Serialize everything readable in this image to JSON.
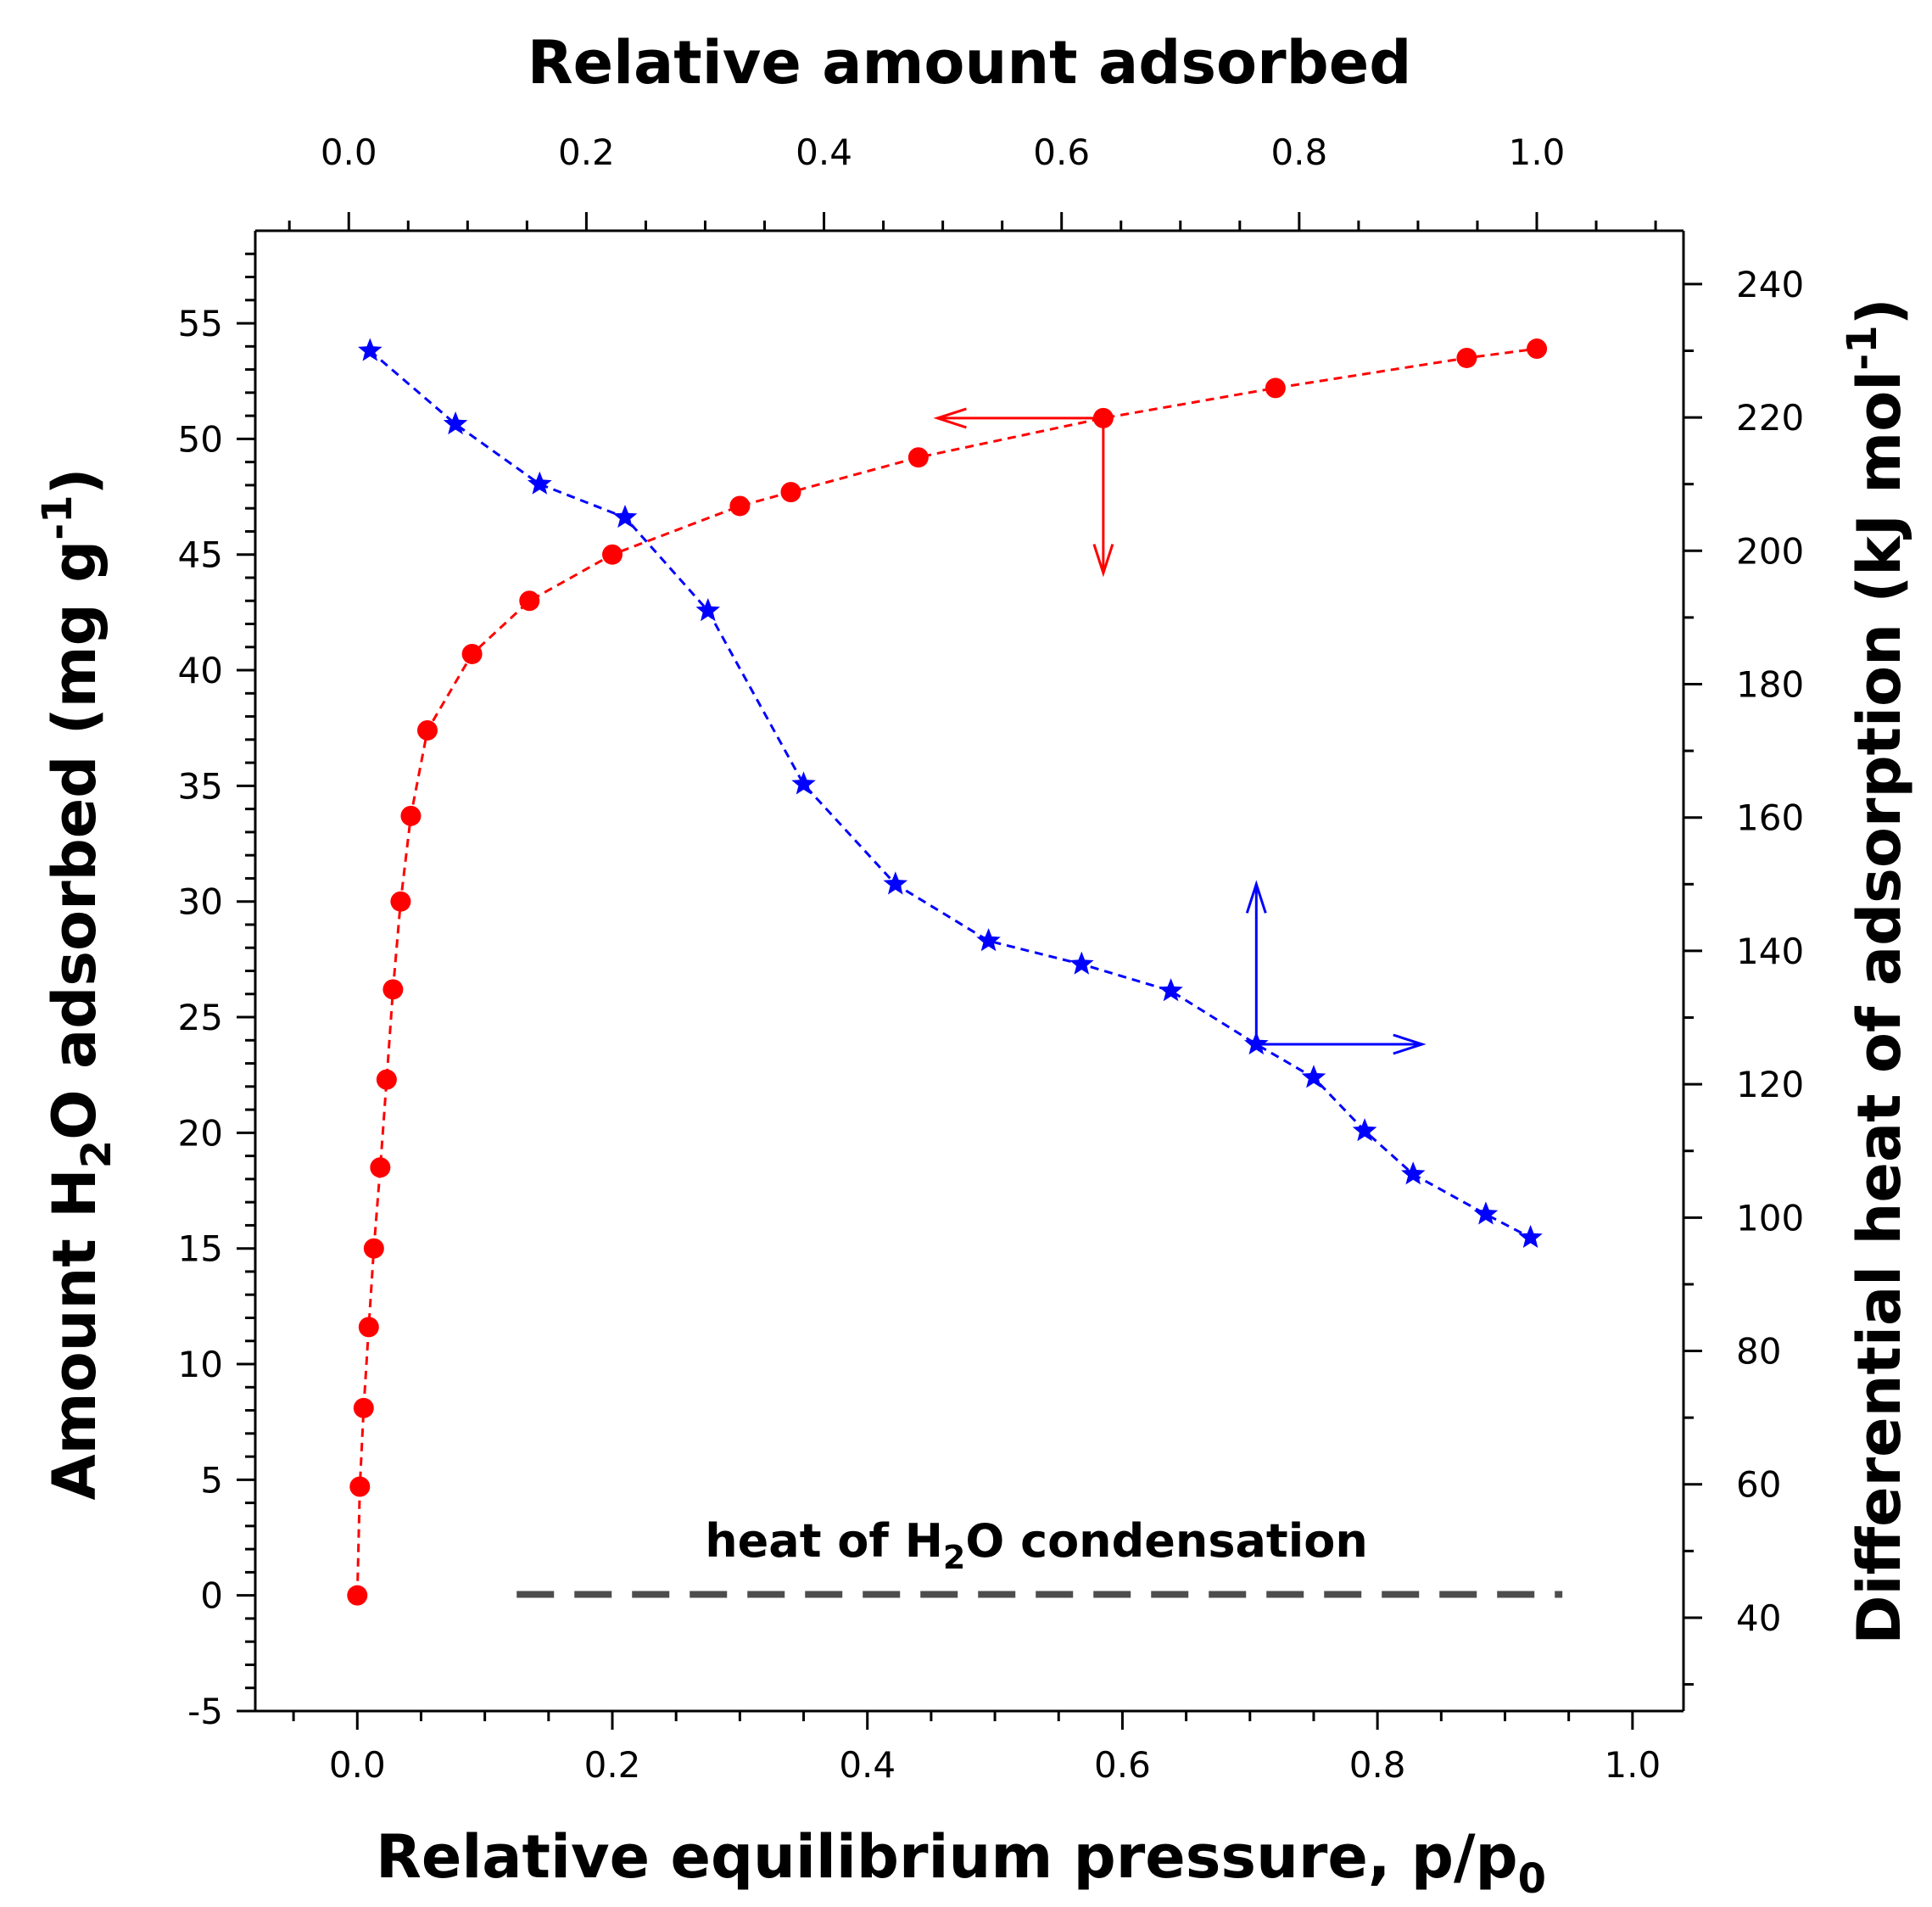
{
  "chart_data": {
    "type": "scatter",
    "top_axis": {
      "label": "Relative amount adsorbed",
      "range": [
        -0.0787,
        1.1235
      ],
      "ticks": [
        0.0,
        0.2,
        0.4,
        0.6,
        0.8,
        1.0
      ],
      "tick_labels": [
        "0.0",
        "0.2",
        "0.4",
        "0.6",
        "0.8",
        "1.0"
      ]
    },
    "x_axis": {
      "label_main": "Relative equilibrium pressure, p/p",
      "label_sub": "0",
      "range": [
        -0.08,
        1.04
      ],
      "ticks": [
        0.0,
        0.2,
        0.4,
        0.6,
        0.8,
        1.0
      ],
      "tick_labels": [
        "0.0",
        "0.2",
        "0.4",
        "0.6",
        "0.8",
        "1.0"
      ]
    },
    "y_left": {
      "label_pre": "Amount H",
      "label_sub": "2",
      "label_mid": "O adsorbed (mg g",
      "label_sup": "-1",
      "label_post": ")",
      "range": [
        -5,
        59
      ],
      "ticks": [
        -5,
        0,
        5,
        10,
        15,
        20,
        25,
        30,
        35,
        40,
        45,
        50,
        55
      ],
      "tick_labels": [
        "-5",
        "0",
        "5",
        "10",
        "15",
        "20",
        "25",
        "30",
        "35",
        "40",
        "45",
        "50",
        "55"
      ]
    },
    "y_right": {
      "label_pre": "Differential heat of adsorption (kJ mol",
      "label_sup": "-1",
      "label_post": ")",
      "range": [
        26,
        248
      ],
      "ticks": [
        40,
        60,
        80,
        100,
        120,
        140,
        160,
        180,
        200,
        220,
        240
      ],
      "tick_labels": [
        "40",
        "60",
        "80",
        "100",
        "120",
        "140",
        "160",
        "180",
        "200",
        "220",
        "240"
      ]
    },
    "series": [
      {
        "name": "Amount H2O adsorbed",
        "axis": "left",
        "marker": "circle",
        "color": "#ff0000",
        "x": [
          0.0,
          0.002,
          0.005,
          0.009,
          0.013,
          0.018,
          0.023,
          0.028,
          0.034,
          0.042,
          0.055,
          0.09,
          0.135,
          0.2,
          0.3,
          0.34,
          0.44,
          0.585,
          0.72,
          0.87,
          0.925
        ],
        "y": [
          0.0,
          4.7,
          8.1,
          11.6,
          15.0,
          18.5,
          22.3,
          26.2,
          30.0,
          33.7,
          37.4,
          40.7,
          43.0,
          45.0,
          47.1,
          47.7,
          49.2,
          50.9,
          52.2,
          53.5,
          53.9
        ]
      },
      {
        "name": "Differential heat of adsorption",
        "axis": "right",
        "marker": "star",
        "color": "#0000ff",
        "x": [
          0.01,
          0.077,
          0.143,
          0.21,
          0.275,
          0.35,
          0.422,
          0.495,
          0.568,
          0.638,
          0.705,
          0.75,
          0.79,
          0.828,
          0.885,
          0.92
        ],
        "y": [
          230,
          219,
          210,
          205,
          191,
          165,
          150,
          141.5,
          138,
          134,
          126,
          121,
          113,
          106.5,
          100.5,
          97
        ]
      }
    ],
    "reference_line": {
      "label_pre": "heat of H",
      "label_sub": "2",
      "label_post": "O condensation",
      "y_right": 43.5,
      "x_start": 0.125,
      "x_end": 0.945,
      "color": "#4d4d4d"
    },
    "arrows": [
      {
        "series": "Amount H2O adsorbed",
        "origin": [
          0.585,
          50.9
        ],
        "horizontal_to_x": 0.455,
        "vertical_to_y": 44.2
      },
      {
        "series": "Differential heat of adsorption",
        "origin": [
          0.705,
          126
        ],
        "vertical_to_y": 150,
        "horizontal_to_x": 0.835
      }
    ]
  }
}
